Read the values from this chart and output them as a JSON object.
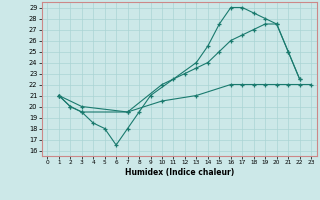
{
  "line1_x": [
    1,
    2,
    3,
    4,
    5,
    6,
    7,
    8,
    9,
    13,
    14,
    15,
    16,
    17,
    18,
    19,
    20,
    21,
    22
  ],
  "line1_y": [
    21,
    20,
    19.5,
    18.5,
    18,
    16.5,
    18,
    19.5,
    21,
    24,
    25.5,
    27.5,
    29,
    29,
    28.5,
    28,
    27.5,
    25,
    22.5
  ],
  "line2_x": [
    1,
    3,
    7,
    10,
    11,
    12,
    13,
    14,
    15,
    16,
    17,
    18,
    19,
    20,
    21,
    22
  ],
  "line2_y": [
    21,
    20,
    19.5,
    22.0,
    22.5,
    23.0,
    23.5,
    24.0,
    25.0,
    26.0,
    26.5,
    27.0,
    27.5,
    27.5,
    25.0,
    22.5
  ],
  "line3_x": [
    1,
    2,
    3,
    7,
    10,
    13,
    16,
    17,
    18,
    19,
    20,
    21,
    22,
    23
  ],
  "line3_y": [
    21,
    20.0,
    19.5,
    19.5,
    20.5,
    21.0,
    22.0,
    22.0,
    22.0,
    22.0,
    22.0,
    22.0,
    22.0,
    22.0
  ],
  "line_color": "#1a7a6e",
  "bg_color": "#cce8e8",
  "grid_color": "#aad4d4",
  "border_color": "#cc8888",
  "xlabel": "Humidex (Indice chaleur)",
  "ylim": [
    15.5,
    29.5
  ],
  "xlim": [
    -0.5,
    23.5
  ],
  "yticks": [
    16,
    17,
    18,
    19,
    20,
    21,
    22,
    23,
    24,
    25,
    26,
    27,
    28,
    29
  ],
  "xticks": [
    0,
    1,
    2,
    3,
    4,
    5,
    6,
    7,
    8,
    9,
    10,
    11,
    12,
    13,
    14,
    15,
    16,
    17,
    18,
    19,
    20,
    21,
    22,
    23
  ]
}
